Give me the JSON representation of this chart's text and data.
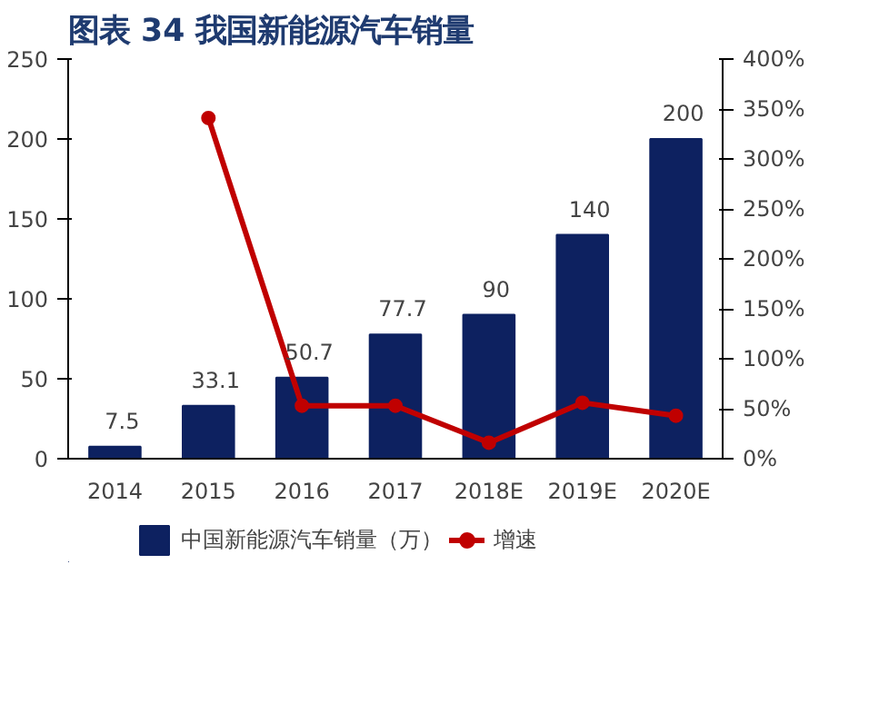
{
  "chart_data": {
    "type": "bar",
    "title": "图表 34   我国新能源汽车销量",
    "categories": [
      "2014",
      "2015",
      "2016",
      "2017",
      "2018E",
      "2019E",
      "2020E"
    ],
    "series": [
      {
        "name": "中国新能源汽车销量（万）",
        "color": "#0d2160",
        "values": [
          7.5,
          33.1,
          50.7,
          77.7,
          90,
          140,
          200
        ],
        "value_labels": [
          "7.5",
          "33.1",
          "50.7",
          "77.7",
          "90",
          "140",
          "200"
        ]
      },
      {
        "name": "增速",
        "type": "line",
        "axis": "y2",
        "color": "#c00000",
        "marker": "circle",
        "values": [
          null,
          341,
          53,
          53,
          16,
          56,
          43
        ]
      }
    ],
    "ylim": [
      0,
      250
    ],
    "yticks": [
      0,
      50,
      100,
      150,
      200,
      250
    ],
    "y2lim": [
      0,
      400
    ],
    "y2ticks": [
      {
        "value": 0,
        "label": "0%"
      },
      {
        "value": 50,
        "label": "50%"
      },
      {
        "value": 100,
        "label": "100%"
      },
      {
        "value": 150,
        "label": "150%"
      },
      {
        "value": 200,
        "label": "200%"
      },
      {
        "value": 250,
        "label": "250%"
      },
      {
        "value": 300,
        "label": "300%"
      },
      {
        "value": 350,
        "label": "350%"
      },
      {
        "value": 400,
        "label": "400%"
      }
    ],
    "grid": false,
    "legend": "bottom"
  }
}
